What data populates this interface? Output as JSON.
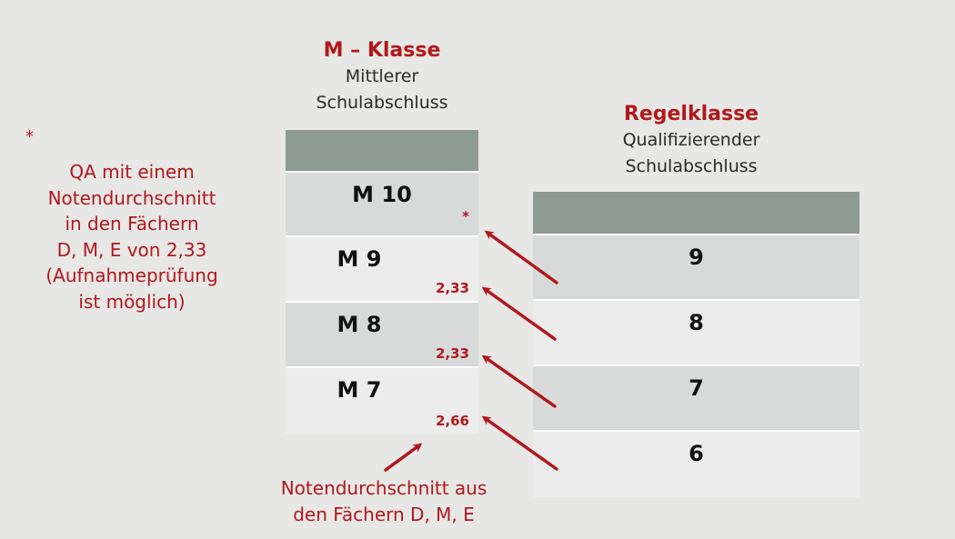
{
  "m_klasse": {
    "title": "M – Klasse",
    "subtitle_line1": "Mittlerer",
    "subtitle_line2": "Schulabschluss",
    "rows": [
      {
        "label": "M 10",
        "avg": "*"
      },
      {
        "label": "M 9",
        "avg": "2,33"
      },
      {
        "label": "M 8",
        "avg": "2,33"
      },
      {
        "label": "M 7",
        "avg": "2,66"
      }
    ]
  },
  "regelklasse": {
    "title": "Regelklasse",
    "subtitle_line1": "Qualifizierender",
    "subtitle_line2": "Schulabschluss",
    "rows": [
      {
        "label": "9"
      },
      {
        "label": "8"
      },
      {
        "label": "7"
      },
      {
        "label": "6"
      }
    ]
  },
  "footnote": {
    "marker": "*",
    "lines": [
      "QA mit einem",
      "Notendurchschnitt",
      "in den Fächern",
      "D, M, E von 2,33",
      "(Aufnahmeprüfung",
      "ist möglich)"
    ]
  },
  "bottom_note": {
    "lines": [
      "Notendurchschnitt aus",
      "den Fächern D, M, E"
    ]
  },
  "colors": {
    "accent_red": "#b0181b",
    "header_green": "#8e9b91",
    "background": "#e7e7e6"
  }
}
